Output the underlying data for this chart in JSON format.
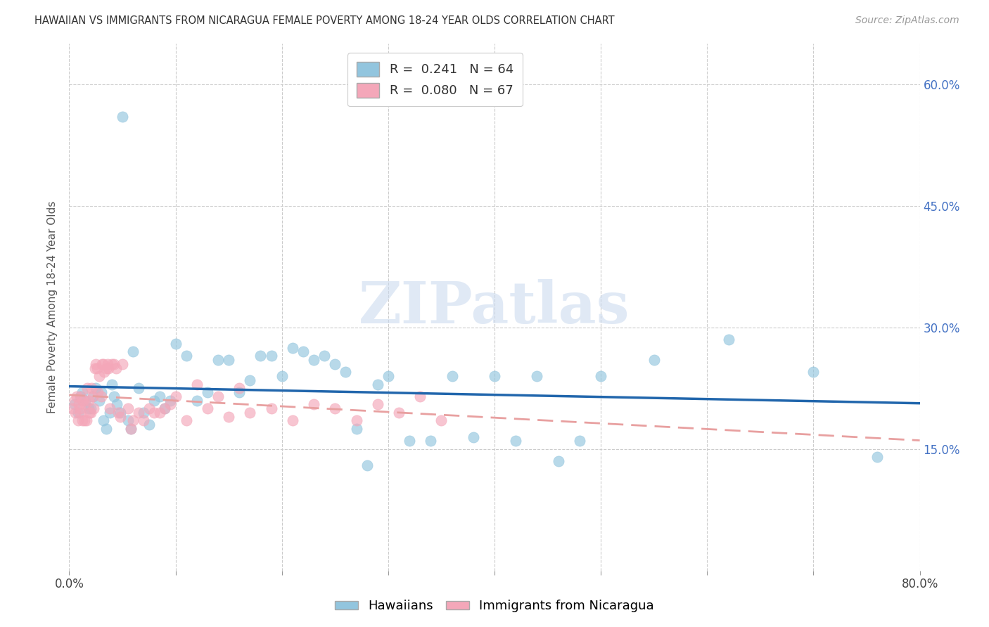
{
  "title": "HAWAIIAN VS IMMIGRANTS FROM NICARAGUA FEMALE POVERTY AMONG 18-24 YEAR OLDS CORRELATION CHART",
  "source": "Source: ZipAtlas.com",
  "ylabel": "Female Poverty Among 18-24 Year Olds",
  "xlim": [
    0,
    0.8
  ],
  "ylim": [
    0.0,
    0.65
  ],
  "y_ticks_right": [
    0.15,
    0.3,
    0.45,
    0.6
  ],
  "y_tick_labels_right": [
    "15.0%",
    "30.0%",
    "45.0%",
    "60.0%"
  ],
  "hawaiians_R": 0.241,
  "hawaiians_N": 64,
  "nicaragua_R": 0.08,
  "nicaragua_N": 67,
  "blue_color": "#92c5de",
  "pink_color": "#f4a7b9",
  "blue_line_color": "#2166ac",
  "pink_line_color": "#d6604d",
  "watermark_text": "ZIPatlas",
  "hawaiians_x": [
    0.005,
    0.008,
    0.01,
    0.012,
    0.015,
    0.018,
    0.02,
    0.022,
    0.025,
    0.028,
    0.03,
    0.032,
    0.035,
    0.038,
    0.04,
    0.042,
    0.045,
    0.048,
    0.05,
    0.055,
    0.058,
    0.06,
    0.065,
    0.07,
    0.075,
    0.08,
    0.085,
    0.09,
    0.095,
    0.1,
    0.11,
    0.12,
    0.13,
    0.14,
    0.15,
    0.16,
    0.17,
    0.18,
    0.19,
    0.2,
    0.21,
    0.22,
    0.23,
    0.24,
    0.25,
    0.26,
    0.27,
    0.28,
    0.29,
    0.3,
    0.32,
    0.34,
    0.36,
    0.38,
    0.4,
    0.42,
    0.44,
    0.46,
    0.48,
    0.5,
    0.55,
    0.62,
    0.7,
    0.76
  ],
  "hawaiians_y": [
    0.205,
    0.195,
    0.215,
    0.22,
    0.21,
    0.2,
    0.2,
    0.215,
    0.225,
    0.21,
    0.22,
    0.185,
    0.175,
    0.195,
    0.23,
    0.215,
    0.205,
    0.195,
    0.56,
    0.185,
    0.175,
    0.27,
    0.225,
    0.195,
    0.18,
    0.21,
    0.215,
    0.2,
    0.21,
    0.28,
    0.265,
    0.21,
    0.22,
    0.26,
    0.26,
    0.22,
    0.235,
    0.265,
    0.265,
    0.24,
    0.275,
    0.27,
    0.26,
    0.265,
    0.255,
    0.245,
    0.175,
    0.13,
    0.23,
    0.24,
    0.16,
    0.16,
    0.24,
    0.165,
    0.24,
    0.16,
    0.24,
    0.135,
    0.16,
    0.24,
    0.26,
    0.285,
    0.245,
    0.14
  ],
  "nicaragua_x": [
    0.003,
    0.005,
    0.006,
    0.007,
    0.008,
    0.009,
    0.01,
    0.01,
    0.011,
    0.012,
    0.013,
    0.014,
    0.015,
    0.016,
    0.017,
    0.018,
    0.019,
    0.02,
    0.021,
    0.022,
    0.023,
    0.024,
    0.025,
    0.026,
    0.027,
    0.028,
    0.03,
    0.031,
    0.032,
    0.033,
    0.035,
    0.036,
    0.037,
    0.038,
    0.04,
    0.042,
    0.044,
    0.046,
    0.048,
    0.05,
    0.055,
    0.058,
    0.06,
    0.065,
    0.07,
    0.075,
    0.08,
    0.085,
    0.09,
    0.095,
    0.1,
    0.11,
    0.12,
    0.13,
    0.14,
    0.15,
    0.16,
    0.17,
    0.19,
    0.21,
    0.23,
    0.25,
    0.27,
    0.29,
    0.31,
    0.33,
    0.35
  ],
  "nicaragua_y": [
    0.2,
    0.21,
    0.195,
    0.215,
    0.185,
    0.205,
    0.195,
    0.2,
    0.215,
    0.185,
    0.21,
    0.185,
    0.205,
    0.185,
    0.225,
    0.21,
    0.195,
    0.195,
    0.225,
    0.215,
    0.2,
    0.25,
    0.255,
    0.25,
    0.22,
    0.24,
    0.215,
    0.255,
    0.255,
    0.245,
    0.25,
    0.255,
    0.25,
    0.2,
    0.255,
    0.255,
    0.25,
    0.195,
    0.19,
    0.255,
    0.2,
    0.175,
    0.185,
    0.195,
    0.185,
    0.2,
    0.195,
    0.195,
    0.2,
    0.205,
    0.215,
    0.185,
    0.23,
    0.2,
    0.215,
    0.19,
    0.225,
    0.195,
    0.2,
    0.185,
    0.205,
    0.2,
    0.185,
    0.205,
    0.195,
    0.215,
    0.185
  ]
}
